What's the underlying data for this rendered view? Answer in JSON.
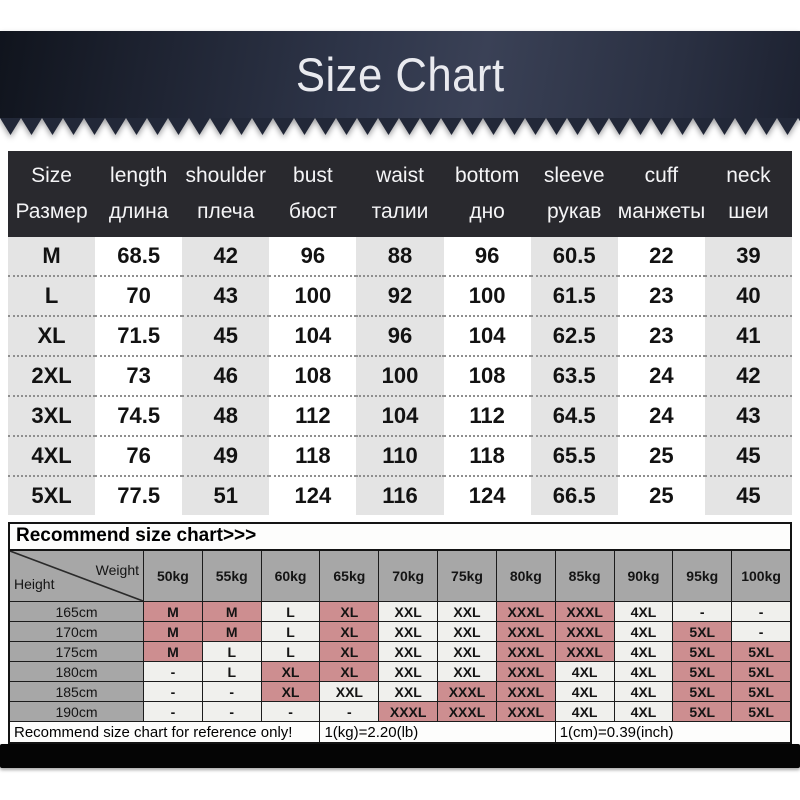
{
  "banner": {
    "title": "Size Chart"
  },
  "size_table": {
    "headers": [
      {
        "en": "Size",
        "ru": "Размер"
      },
      {
        "en": "length",
        "ru": "длина"
      },
      {
        "en": "shoulder",
        "ru": "плеча"
      },
      {
        "en": "bust",
        "ru": "бюст"
      },
      {
        "en": "waist",
        "ru": "талии"
      },
      {
        "en": "bottom",
        "ru": "дно"
      },
      {
        "en": "sleeve",
        "ru": "рукав"
      },
      {
        "en": "cuff",
        "ru": "манжеты"
      },
      {
        "en": "neck",
        "ru": "шеи"
      }
    ],
    "rows": [
      [
        "M",
        "68.5",
        "42",
        "96",
        "88",
        "96",
        "60.5",
        "22",
        "39"
      ],
      [
        "L",
        "70",
        "43",
        "100",
        "92",
        "100",
        "61.5",
        "23",
        "40"
      ],
      [
        "XL",
        "71.5",
        "45",
        "104",
        "96",
        "104",
        "62.5",
        "23",
        "41"
      ],
      [
        "2XL",
        "73",
        "46",
        "108",
        "100",
        "108",
        "63.5",
        "24",
        "42"
      ],
      [
        "3XL",
        "74.5",
        "48",
        "112",
        "104",
        "112",
        "64.5",
        "24",
        "43"
      ],
      [
        "4XL",
        "76",
        "49",
        "118",
        "110",
        "118",
        "65.5",
        "25",
        "45"
      ],
      [
        "5XL",
        "77.5",
        "51",
        "124",
        "116",
        "124",
        "66.5",
        "25",
        "45"
      ]
    ]
  },
  "recommend_table": {
    "title": "Recommend size chart>>>",
    "corner": {
      "height_label": "Height",
      "weight_label": "Weight"
    },
    "weights": [
      "50kg",
      "55kg",
      "60kg",
      "65kg",
      "70kg",
      "75kg",
      "80kg",
      "85kg",
      "90kg",
      "95kg",
      "100kg"
    ],
    "rows": [
      {
        "height": "165cm",
        "cells": [
          {
            "v": "M",
            "hl": true
          },
          {
            "v": "M",
            "hl": true
          },
          {
            "v": "L",
            "hl": false
          },
          {
            "v": "XL",
            "hl": true
          },
          {
            "v": "XXL",
            "hl": false
          },
          {
            "v": "XXL",
            "hl": false
          },
          {
            "v": "XXXL",
            "hl": true
          },
          {
            "v": "XXXL",
            "hl": true
          },
          {
            "v": "4XL",
            "hl": false
          },
          {
            "v": "-",
            "hl": false
          },
          {
            "v": "-",
            "hl": false
          }
        ]
      },
      {
        "height": "170cm",
        "cells": [
          {
            "v": "M",
            "hl": true
          },
          {
            "v": "M",
            "hl": true
          },
          {
            "v": "L",
            "hl": false
          },
          {
            "v": "XL",
            "hl": true
          },
          {
            "v": "XXL",
            "hl": false
          },
          {
            "v": "XXL",
            "hl": false
          },
          {
            "v": "XXXL",
            "hl": true
          },
          {
            "v": "XXXL",
            "hl": true
          },
          {
            "v": "4XL",
            "hl": false
          },
          {
            "v": "5XL",
            "hl": true
          },
          {
            "v": "-",
            "hl": false
          }
        ]
      },
      {
        "height": "175cm",
        "cells": [
          {
            "v": "M",
            "hl": true
          },
          {
            "v": "L",
            "hl": false
          },
          {
            "v": "L",
            "hl": false
          },
          {
            "v": "XL",
            "hl": true
          },
          {
            "v": "XXL",
            "hl": false
          },
          {
            "v": "XXL",
            "hl": false
          },
          {
            "v": "XXXL",
            "hl": true
          },
          {
            "v": "XXXL",
            "hl": true
          },
          {
            "v": "4XL",
            "hl": false
          },
          {
            "v": "5XL",
            "hl": true
          },
          {
            "v": "5XL",
            "hl": true
          }
        ]
      },
      {
        "height": "180cm",
        "cells": [
          {
            "v": "-",
            "hl": false
          },
          {
            "v": "L",
            "hl": false
          },
          {
            "v": "XL",
            "hl": true
          },
          {
            "v": "XL",
            "hl": true
          },
          {
            "v": "XXL",
            "hl": false
          },
          {
            "v": "XXL",
            "hl": false
          },
          {
            "v": "XXXL",
            "hl": true
          },
          {
            "v": "4XL",
            "hl": false
          },
          {
            "v": "4XL",
            "hl": false
          },
          {
            "v": "5XL",
            "hl": true
          },
          {
            "v": "5XL",
            "hl": true
          }
        ]
      },
      {
        "height": "185cm",
        "cells": [
          {
            "v": "-",
            "hl": false
          },
          {
            "v": "-",
            "hl": false
          },
          {
            "v": "XL",
            "hl": true
          },
          {
            "v": "XXL",
            "hl": false
          },
          {
            "v": "XXL",
            "hl": false
          },
          {
            "v": "XXXL",
            "hl": true
          },
          {
            "v": "XXXL",
            "hl": true
          },
          {
            "v": "4XL",
            "hl": false
          },
          {
            "v": "4XL",
            "hl": false
          },
          {
            "v": "5XL",
            "hl": true
          },
          {
            "v": "5XL",
            "hl": true
          }
        ]
      },
      {
        "height": "190cm",
        "cells": [
          {
            "v": "-",
            "hl": false
          },
          {
            "v": "-",
            "hl": false
          },
          {
            "v": "-",
            "hl": false
          },
          {
            "v": "-",
            "hl": false
          },
          {
            "v": "XXXL",
            "hl": true
          },
          {
            "v": "XXXL",
            "hl": true
          },
          {
            "v": "XXXL",
            "hl": true
          },
          {
            "v": "4XL",
            "hl": false
          },
          {
            "v": "4XL",
            "hl": false
          },
          {
            "v": "5XL",
            "hl": true
          },
          {
            "v": "5XL",
            "hl": true
          }
        ]
      }
    ],
    "footer": {
      "note": "Recommend size chart for reference only!",
      "kg_conversion": "1(kg)=2.20(lb)",
      "cm_conversion": "1(cm)=0.39(inch)"
    }
  },
  "colors": {
    "banner_bg": "#2f364a",
    "table_header_bg": "#29292e",
    "stripe_gray": "#e4e4e4",
    "grid_gray": "#a7a7a7",
    "cell_light": "#f0f0ed",
    "highlight_pink": "#cd8e90",
    "divider_black": "#050505"
  }
}
